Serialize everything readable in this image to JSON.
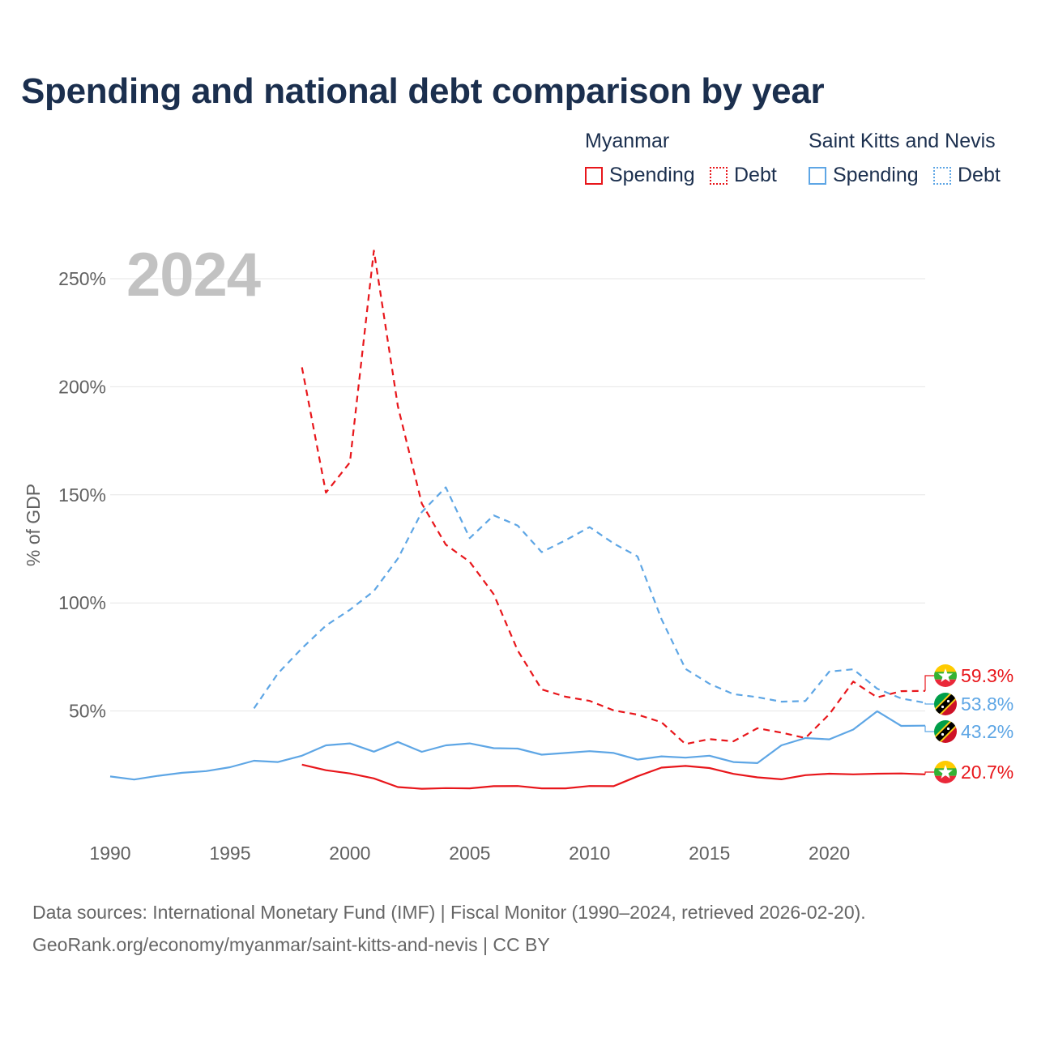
{
  "title": "Spending and national debt comparison by year",
  "year_label": "2024",
  "legend": {
    "groups": [
      {
        "country": "Myanmar",
        "spending": "Spending",
        "debt": "Debt"
      },
      {
        "country": "Saint Kitts and Nevis",
        "spending": "Spending",
        "debt": "Debt"
      }
    ]
  },
  "colors": {
    "myanmar": "#e8161b",
    "saint_kitts_and_nevis": "#5ea6e5",
    "grid": "#e6e6e6",
    "title": "#1b2f4e"
  },
  "source": {
    "line1": "Data sources: International Monetary Fund (IMF) | Fiscal Monitor (1990–2024, retrieved 2026-02-20).",
    "line2": "GeoRank.org/economy/myanmar/saint-kitts-and-nevis | CC BY"
  },
  "chart_data": {
    "type": "line",
    "title": "Spending and national debt comparison by year",
    "xlabel": "",
    "ylabel": "% of GDP",
    "xlim": [
      1990,
      2024
    ],
    "ylim": [
      0,
      262
    ],
    "x_ticks": [
      1990,
      1995,
      2000,
      2005,
      2010,
      2015,
      2020
    ],
    "y_ticks": [
      50,
      100,
      150,
      200,
      250
    ],
    "y_tick_labels": [
      "50%",
      "100%",
      "150%",
      "200%",
      "250%"
    ],
    "grid": true,
    "legend_position": "top-right",
    "series": [
      {
        "name": "Myanmar Spending",
        "country": "Myanmar",
        "measure": "Spending",
        "color": "#e8161b",
        "style": "solid",
        "end_label": "20.7%",
        "points": [
          [
            1998,
            25.2
          ],
          [
            1999,
            22.6
          ],
          [
            2000,
            21.1
          ],
          [
            2001,
            18.8
          ],
          [
            2002,
            14.8
          ],
          [
            2003,
            14.0
          ],
          [
            2004,
            14.3
          ],
          [
            2005,
            14.2
          ],
          [
            2006,
            15.2
          ],
          [
            2007,
            15.3
          ],
          [
            2008,
            14.2
          ],
          [
            2009,
            14.2
          ],
          [
            2010,
            15.3
          ],
          [
            2011,
            15.2
          ],
          [
            2012,
            19.8
          ],
          [
            2013,
            23.8
          ],
          [
            2014,
            24.6
          ],
          [
            2015,
            23.6
          ],
          [
            2016,
            20.9
          ],
          [
            2017,
            19.3
          ],
          [
            2018,
            18.4
          ],
          [
            2019,
            20.3
          ],
          [
            2020,
            21.0
          ],
          [
            2021,
            20.7
          ],
          [
            2022,
            21.0
          ],
          [
            2023,
            21.1
          ],
          [
            2024,
            20.7
          ]
        ]
      },
      {
        "name": "Myanmar Debt",
        "country": "Myanmar",
        "measure": "Debt",
        "color": "#e8161b",
        "style": "dashed",
        "end_label": "59.3%",
        "points": [
          [
            1998,
            209
          ],
          [
            1999,
            151
          ],
          [
            2000,
            165
          ],
          [
            2001,
            263
          ],
          [
            2002,
            191
          ],
          [
            2003,
            146
          ],
          [
            2004,
            127
          ],
          [
            2005,
            119
          ],
          [
            2006,
            104
          ],
          [
            2007,
            78
          ],
          [
            2008,
            60
          ],
          [
            2009,
            56.6
          ],
          [
            2010,
            54.7
          ],
          [
            2011,
            50.3
          ],
          [
            2012,
            48.3
          ],
          [
            2013,
            44.8
          ],
          [
            2014,
            34.7
          ],
          [
            2015,
            37.0
          ],
          [
            2016,
            36.0
          ],
          [
            2017,
            42.0
          ],
          [
            2018,
            40.0
          ],
          [
            2019,
            37.5
          ],
          [
            2020,
            48.5
          ],
          [
            2021,
            63.6
          ],
          [
            2022,
            56.3
          ],
          [
            2023,
            59.2
          ],
          [
            2024,
            59.3
          ]
        ]
      },
      {
        "name": "Saint Kitts and Nevis Spending",
        "country": "Saint Kitts and Nevis",
        "measure": "Spending",
        "color": "#5ea6e5",
        "style": "solid",
        "end_label": "43.2%",
        "points": [
          [
            1990,
            19.7
          ],
          [
            1991,
            18.3
          ],
          [
            1992,
            20.0
          ],
          [
            1993,
            21.4
          ],
          [
            1994,
            22.2
          ],
          [
            1995,
            24.0
          ],
          [
            1996,
            27.0
          ],
          [
            1997,
            26.4
          ],
          [
            1998,
            29.3
          ],
          [
            1999,
            34.1
          ],
          [
            2000,
            35.0
          ],
          [
            2001,
            31.2
          ],
          [
            2002,
            35.7
          ],
          [
            2003,
            31.1
          ],
          [
            2004,
            34.1
          ],
          [
            2005,
            35.0
          ],
          [
            2006,
            32.8
          ],
          [
            2007,
            32.6
          ],
          [
            2008,
            29.8
          ],
          [
            2009,
            30.6
          ],
          [
            2010,
            31.4
          ],
          [
            2011,
            30.6
          ],
          [
            2012,
            27.5
          ],
          [
            2013,
            29.0
          ],
          [
            2014,
            28.4
          ],
          [
            2015,
            29.3
          ],
          [
            2016,
            26.4
          ],
          [
            2017,
            25.9
          ],
          [
            2018,
            34.1
          ],
          [
            2019,
            37.5
          ],
          [
            2020,
            36.9
          ],
          [
            2021,
            41.4
          ],
          [
            2022,
            49.9
          ],
          [
            2023,
            43.1
          ],
          [
            2024,
            43.2
          ]
        ]
      },
      {
        "name": "Saint Kitts and Nevis Debt",
        "country": "Saint Kitts and Nevis",
        "measure": "Debt",
        "color": "#5ea6e5",
        "style": "dashed",
        "end_label": "53.8%",
        "points": [
          [
            1996,
            51.2
          ],
          [
            1997,
            67.4
          ],
          [
            1998,
            79.0
          ],
          [
            1999,
            89.5
          ],
          [
            2000,
            96.8
          ],
          [
            2001,
            105.5
          ],
          [
            2002,
            120.5
          ],
          [
            2003,
            142.0
          ],
          [
            2004,
            153.5
          ],
          [
            2005,
            130.0
          ],
          [
            2006,
            140.5
          ],
          [
            2007,
            135.8
          ],
          [
            2008,
            123.5
          ],
          [
            2009,
            129.0
          ],
          [
            2010,
            135.1
          ],
          [
            2011,
            127.5
          ],
          [
            2012,
            121.5
          ],
          [
            2013,
            92.5
          ],
          [
            2014,
            69.5
          ],
          [
            2015,
            62.6
          ],
          [
            2016,
            57.8
          ],
          [
            2017,
            56.4
          ],
          [
            2018,
            54.3
          ],
          [
            2019,
            54.6
          ],
          [
            2020,
            68.2
          ],
          [
            2021,
            69.3
          ],
          [
            2022,
            60.3
          ],
          [
            2023,
            55.8
          ],
          [
            2024,
            53.8
          ]
        ]
      }
    ]
  }
}
